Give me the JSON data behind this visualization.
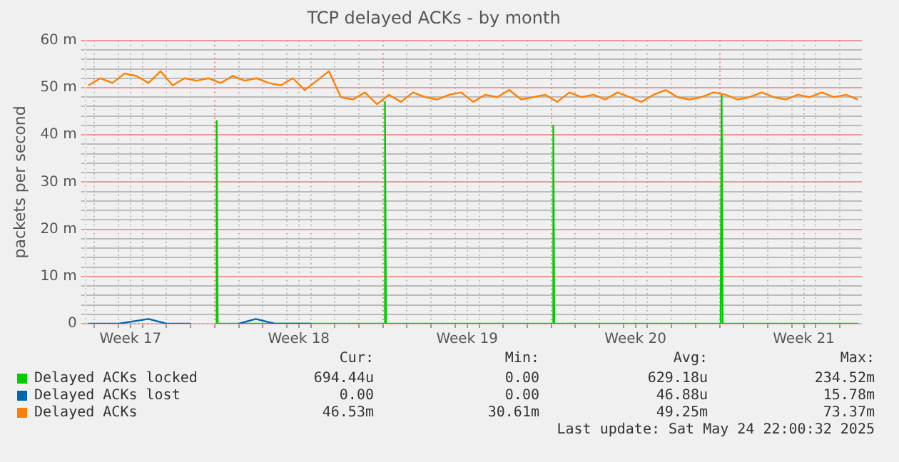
{
  "chart_data": {
    "type": "line",
    "title": "TCP delayed ACKs - by month",
    "ylabel": "packets per second",
    "xlim": [
      "2025-04-22T15:00",
      "2025-05-24T22:00"
    ],
    "xticks": [
      {
        "value": "2025-04-23",
        "label": null
      },
      {
        "value": "2025-04-24",
        "label": null
      },
      {
        "value": "2025-04-24T12:00",
        "label": "Week 17"
      },
      {
        "value": "2025-04-25",
        "label": null
      },
      {
        "value": "2025-04-26",
        "label": null
      },
      {
        "value": "2025-04-27",
        "label": null
      },
      {
        "value": "2025-04-28",
        "label": null
      },
      {
        "value": "2025-04-29",
        "label": null
      },
      {
        "value": "2025-04-30",
        "label": null
      },
      {
        "value": "2025-05-01",
        "label": null
      },
      {
        "value": "2025-05-01T12:00",
        "label": "Week 18"
      },
      {
        "value": "2025-05-02",
        "label": null
      },
      {
        "value": "2025-05-03",
        "label": null
      },
      {
        "value": "2025-05-04",
        "label": null
      },
      {
        "value": "2025-05-05",
        "label": null
      },
      {
        "value": "2025-05-06",
        "label": null
      },
      {
        "value": "2025-05-07",
        "label": null
      },
      {
        "value": "2025-05-08",
        "label": null
      },
      {
        "value": "2025-05-08T12:00",
        "label": "Week 19"
      },
      {
        "value": "2025-05-09",
        "label": null
      },
      {
        "value": "2025-05-10",
        "label": null
      },
      {
        "value": "2025-05-11",
        "label": null
      },
      {
        "value": "2025-05-12",
        "label": null
      },
      {
        "value": "2025-05-13",
        "label": null
      },
      {
        "value": "2025-05-14",
        "label": null
      },
      {
        "value": "2025-05-15",
        "label": null
      },
      {
        "value": "2025-05-15T12:00",
        "label": "Week 20"
      },
      {
        "value": "2025-05-16",
        "label": null
      },
      {
        "value": "2025-05-17",
        "label": null
      },
      {
        "value": "2025-05-18",
        "label": null
      },
      {
        "value": "2025-05-19",
        "label": null
      },
      {
        "value": "2025-05-20",
        "label": null
      },
      {
        "value": "2025-05-21",
        "label": null
      },
      {
        "value": "2025-05-22",
        "label": null
      },
      {
        "value": "2025-05-22T12:00",
        "label": "Week 21"
      },
      {
        "value": "2025-05-23",
        "label": null
      },
      {
        "value": "2025-05-24",
        "label": null
      }
    ],
    "ylim": [
      0,
      60
    ],
    "yticks": [
      {
        "value": 0,
        "label": "0"
      },
      {
        "value": 2,
        "label": null
      },
      {
        "value": 4,
        "label": null
      },
      {
        "value": 6,
        "label": null
      },
      {
        "value": 8,
        "label": null
      },
      {
        "value": 10,
        "label": "10 m"
      },
      {
        "value": 12,
        "label": null
      },
      {
        "value": 14,
        "label": null
      },
      {
        "value": 16,
        "label": null
      },
      {
        "value": 18,
        "label": null
      },
      {
        "value": 20,
        "label": "20 m"
      },
      {
        "value": 22,
        "label": null
      },
      {
        "value": 24,
        "label": null
      },
      {
        "value": 26,
        "label": null
      },
      {
        "value": 28,
        "label": null
      },
      {
        "value": 30,
        "label": "30 m"
      },
      {
        "value": 32,
        "label": null
      },
      {
        "value": 34,
        "label": null
      },
      {
        "value": 36,
        "label": null
      },
      {
        "value": 38,
        "label": null
      },
      {
        "value": 40,
        "label": "40 m"
      },
      {
        "value": 42,
        "label": null
      },
      {
        "value": 44,
        "label": null
      },
      {
        "value": 46,
        "label": null
      },
      {
        "value": 48,
        "label": null
      },
      {
        "value": 50,
        "label": "50 m"
      },
      {
        "value": 52,
        "label": null
      },
      {
        "value": 54,
        "label": null
      },
      {
        "value": 56,
        "label": null
      },
      {
        "value": 58,
        "label": null
      },
      {
        "value": 60,
        "label": "60 m"
      }
    ],
    "grid": true,
    "legend": "bottom",
    "marker": "none",
    "line_style": "solid",
    "series": [
      {
        "name": "Delayed ACKs locked",
        "color": "#00cc00",
        "x": [
          "2025-04-28T01:00",
          "2025-04-28T02:00",
          "2025-04-28T03:00",
          "2025-05-03T00:00",
          "2025-05-05T01:00",
          "2025-05-05T02:00",
          "2025-05-05T03:00",
          "2025-05-08T00:00",
          "2025-05-12T01:00",
          "2025-05-12T02:00",
          "2025-05-12T03:00",
          "2025-05-15T00:00",
          "2025-05-19T01:00",
          "2025-05-19T02:00",
          "2025-05-19T03:00",
          "2025-05-22T00:00",
          "2025-05-24T18:00"
        ],
        "values": [
          0,
          43,
          0,
          0,
          0,
          47,
          0,
          0,
          0,
          42,
          0,
          0,
          0,
          48.5,
          0,
          0,
          0
        ]
      },
      {
        "name": "Delayed ACKs lost",
        "color": "#0066b3",
        "x": [
          "2025-04-22T18:00",
          "2025-04-24T00:00",
          "2025-04-25T06:00",
          "2025-04-26T00:00",
          "2025-04-27T00:00",
          "2025-04-28T02:00",
          "2025-04-29T00:00",
          "2025-04-29T17:00",
          "2025-04-30T12:00",
          "2025-05-02T00:00"
        ],
        "values": [
          0,
          0,
          1,
          0,
          0,
          null,
          0,
          1,
          0,
          0
        ]
      },
      {
        "name": "Delayed ACKs",
        "color": "#ff8000",
        "x": [
          "2025-04-22T18:00",
          "2025-04-23T06:00",
          "2025-04-23T18:00",
          "2025-04-24T06:00",
          "2025-04-24T18:00",
          "2025-04-25T06:00",
          "2025-04-25T18:00",
          "2025-04-26T06:00",
          "2025-04-26T18:00",
          "2025-04-27T06:00",
          "2025-04-27T18:00",
          "2025-04-28T06:00",
          "2025-04-28T18:00",
          "2025-04-29T06:00",
          "2025-04-29T18:00",
          "2025-04-30T06:00",
          "2025-04-30T18:00",
          "2025-05-01T06:00",
          "2025-05-01T18:00",
          "2025-05-02T06:00",
          "2025-05-02T18:00",
          "2025-05-03T06:00",
          "2025-05-03T18:00",
          "2025-05-04T06:00",
          "2025-05-04T18:00",
          "2025-05-05T06:00",
          "2025-05-05T18:00",
          "2025-05-06T06:00",
          "2025-05-06T18:00",
          "2025-05-07T06:00",
          "2025-05-07T18:00",
          "2025-05-08T06:00",
          "2025-05-08T18:00",
          "2025-05-09T06:00",
          "2025-05-09T18:00",
          "2025-05-10T06:00",
          "2025-05-10T18:00",
          "2025-05-11T06:00",
          "2025-05-11T18:00",
          "2025-05-12T06:00",
          "2025-05-12T18:00",
          "2025-05-13T06:00",
          "2025-05-13T18:00",
          "2025-05-14T06:00",
          "2025-05-14T18:00",
          "2025-05-15T06:00",
          "2025-05-15T18:00",
          "2025-05-16T06:00",
          "2025-05-16T18:00",
          "2025-05-17T06:00",
          "2025-05-17T18:00",
          "2025-05-18T06:00",
          "2025-05-18T18:00",
          "2025-05-19T06:00",
          "2025-05-19T18:00",
          "2025-05-20T06:00",
          "2025-05-20T18:00",
          "2025-05-21T06:00",
          "2025-05-21T18:00",
          "2025-05-22T06:00",
          "2025-05-22T18:00",
          "2025-05-23T06:00",
          "2025-05-23T18:00",
          "2025-05-24T06:00",
          "2025-05-24T18:00"
        ],
        "values": [
          50.5,
          52,
          51,
          53,
          52.5,
          51,
          53.5,
          50.5,
          52,
          51.5,
          52,
          51,
          52.5,
          51.5,
          52,
          51,
          50.5,
          52,
          49.5,
          51.5,
          53.5,
          48,
          47.5,
          49,
          46.5,
          48.5,
          47,
          49,
          48,
          47.5,
          48.5,
          49,
          47,
          48.5,
          48,
          49.5,
          47.5,
          48,
          48.5,
          47,
          49,
          48,
          48.5,
          47.5,
          49,
          48,
          47,
          48.5,
          49.5,
          48,
          47.5,
          48,
          49,
          48.5,
          47.5,
          48,
          49,
          48,
          47.5,
          48.5,
          48,
          49,
          48,
          48.5,
          47.5
        ]
      }
    ],
    "annotations": [
      "Cur:",
      "Min:",
      "Avg:",
      "Max:",
      "694.44u",
      "0.00",
      "629.18u",
      "234.52m",
      "0.00",
      "0.00",
      "46.88u",
      "15.78m",
      "46.53m",
      "30.61m",
      "49.25m",
      "73.37m",
      "Last update: Sat May 24 22:00:32 2025"
    ]
  }
}
